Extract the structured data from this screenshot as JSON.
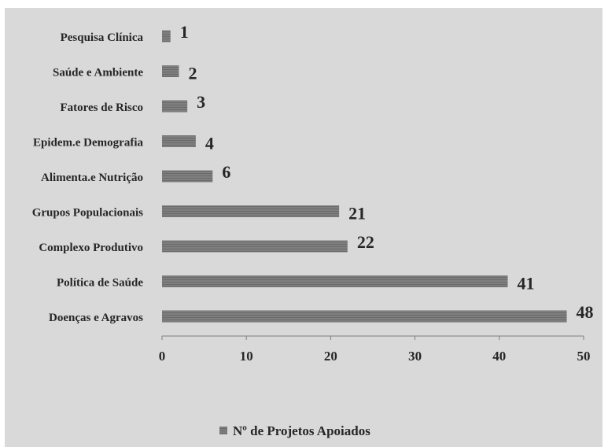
{
  "chart_data": {
    "type": "bar",
    "orientation": "horizontal",
    "categories": [
      "Pesquisa Clínica",
      "Saúde e Ambiente",
      "Fatores de Risco",
      "Epidem.e Demografia",
      "Alimenta.e Nutrição",
      "Grupos Populacionais",
      "Complexo Produtivo",
      "Política de Saúde",
      "Doenças e Agravos"
    ],
    "series": [
      {
        "name": "Nº de Projetos Apoiados",
        "values": [
          1,
          2,
          3,
          4,
          6,
          21,
          22,
          41,
          48
        ]
      }
    ],
    "xlim": [
      0,
      50
    ],
    "xticks": [
      0,
      10,
      20,
      30,
      40,
      50
    ],
    "data_labels": true,
    "grid": false,
    "legend_position": "bottom",
    "colors": {
      "bar": "#7f7f7f",
      "background": "#d9d9d9",
      "text": "#262626"
    }
  }
}
